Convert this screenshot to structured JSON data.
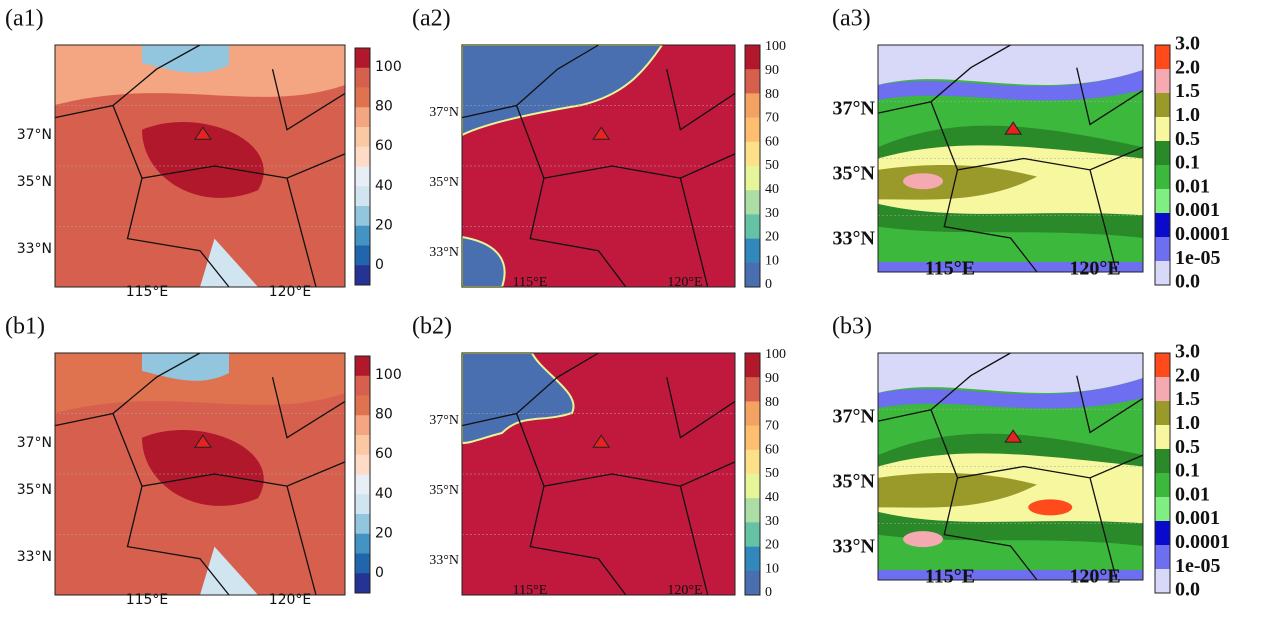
{
  "panels": [
    {
      "label": "(a1)",
      "yticks": [
        "37°N",
        "35°N",
        "33°N"
      ],
      "xticks": [
        "115°E",
        "120°E"
      ],
      "colorbar": {
        "labels": [
          "100",
          "80",
          "60",
          "40",
          "20",
          "0"
        ],
        "colors": [
          "#b2182b",
          "#d6604d",
          "#e0734f",
          "#f4a582",
          "#fbc8a4",
          "#fddbc7",
          "#e7eef4",
          "#d1e5f0",
          "#92c5de",
          "#4393c3",
          "#2166ac",
          "#253494"
        ]
      }
    },
    {
      "label": "(a2)",
      "yticks": [
        "37°N",
        "35°N",
        "33°N"
      ],
      "xticks": [
        "115°E",
        "120°E"
      ],
      "colorbar": {
        "labels": [
          "100",
          "90",
          "80",
          "70",
          "60",
          "50",
          "40",
          "30",
          "20",
          "10",
          "0"
        ],
        "colors": [
          "#b2182b",
          "#d6604d",
          "#f4a261",
          "#fdbf6f",
          "#fee08b",
          "#e6f598",
          "#abdda4",
          "#66c2a5",
          "#3288bd",
          "#4a6fb0"
        ]
      }
    },
    {
      "label": "(a3)",
      "yticks": [
        "37°N",
        "35°N",
        "33°N"
      ],
      "xticks": [
        "115°E",
        "120°E"
      ],
      "colorbar": {
        "labels": [
          "3.0",
          "2.0",
          "1.5",
          "1.0",
          "0.5",
          "0.1",
          "0.01",
          "0.001",
          "0.0001",
          "1e-05",
          "0.0"
        ],
        "colors": [
          "#ff4a1c",
          "#f5a9b0",
          "#9a9a2a",
          "#f7f7a0",
          "#2a8a2a",
          "#3cb83c",
          "#80ee80",
          "#0a0acc",
          "#6e6ef0",
          "#d8d8f8"
        ]
      }
    },
    {
      "label": "(b1)",
      "yticks": [
        "37°N",
        "35°N",
        "33°N"
      ],
      "xticks": [
        "115°E",
        "120°E"
      ],
      "colorbar": {
        "labels": [
          "100",
          "80",
          "60",
          "40",
          "20",
          "0"
        ],
        "colors": [
          "#b2182b",
          "#d6604d",
          "#e0734f",
          "#f4a582",
          "#fbc8a4",
          "#fddbc7",
          "#e7eef4",
          "#d1e5f0",
          "#92c5de",
          "#4393c3",
          "#2166ac",
          "#253494"
        ]
      }
    },
    {
      "label": "(b2)",
      "yticks": [
        "37°N",
        "35°N",
        "33°N"
      ],
      "xticks": [
        "115°E",
        "120°E"
      ],
      "colorbar": {
        "labels": [
          "100",
          "90",
          "80",
          "70",
          "60",
          "50",
          "40",
          "30",
          "20",
          "10",
          "0"
        ],
        "colors": [
          "#b2182b",
          "#d6604d",
          "#f4a261",
          "#fdbf6f",
          "#fee08b",
          "#e6f598",
          "#abdda4",
          "#66c2a5",
          "#3288bd",
          "#4a6fb0"
        ]
      }
    },
    {
      "label": "(b3)",
      "yticks": [
        "37°N",
        "35°N",
        "33°N"
      ],
      "xticks": [
        "115°E",
        "120°E"
      ],
      "colorbar": {
        "labels": [
          "3.0",
          "2.0",
          "1.5",
          "1.0",
          "0.5",
          "0.1",
          "0.01",
          "0.001",
          "0.0001",
          "1e-05",
          "0.0"
        ],
        "colors": [
          "#ff4a1c",
          "#f5a9b0",
          "#9a9a2a",
          "#f7f7a0",
          "#2a8a2a",
          "#3cb83c",
          "#80ee80",
          "#0a0acc",
          "#6e6ef0",
          "#d8d8f8"
        ]
      }
    }
  ]
}
